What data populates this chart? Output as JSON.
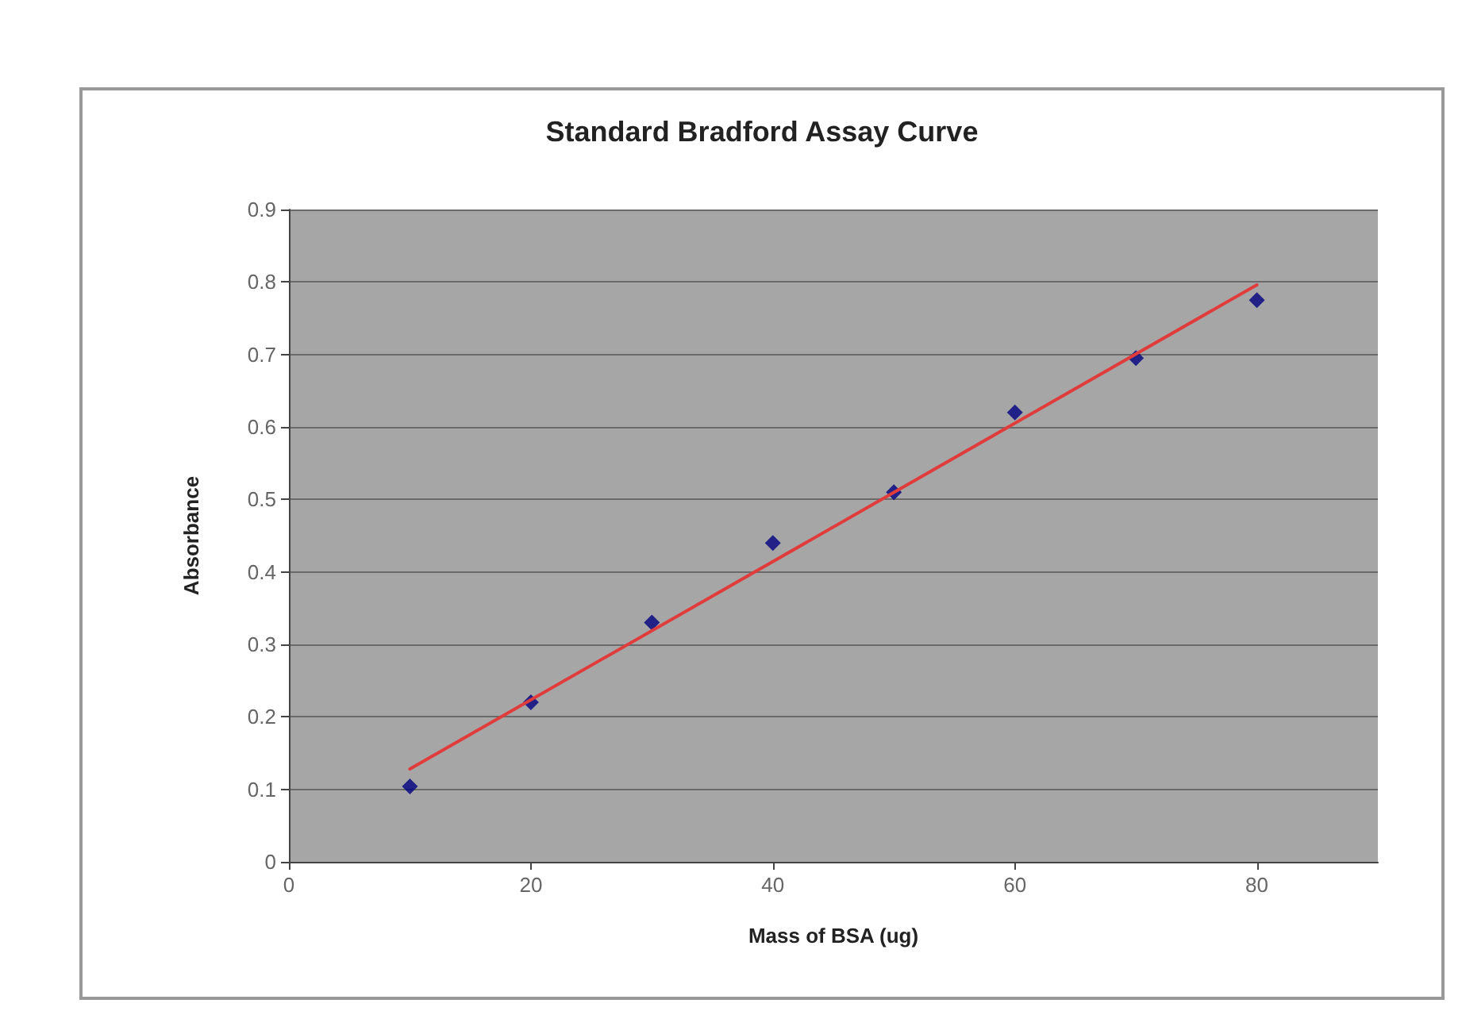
{
  "chart_data": {
    "type": "scatter",
    "title": "Standard Bradford Assay Curve",
    "xlabel": "Mass of BSA (ug)",
    "ylabel": "Absorbance",
    "series": [
      {
        "color": "#000080",
        "marker": "diamond",
        "x": [
          10,
          20,
          30,
          40,
          50,
          60,
          70,
          80
        ],
        "values": [
          0.104,
          0.22,
          0.33,
          0.44,
          0.51,
          0.62,
          0.695,
          0.775
        ]
      },
      {
        "type": "line",
        "color": "#e03c3c",
        "marker": "none",
        "line_style": "solid",
        "x": [
          10,
          80
        ],
        "values": [
          0.128,
          0.796
        ]
      }
    ],
    "xlim": [
      0,
      90
    ],
    "xticks": [
      0,
      20,
      40,
      60,
      80
    ],
    "ylim": [
      0,
      0.9
    ],
    "yticks": [
      0,
      0.1,
      0.2,
      0.3,
      0.4,
      0.5,
      0.6,
      0.7,
      0.8,
      0.9
    ],
    "grid": "y"
  }
}
